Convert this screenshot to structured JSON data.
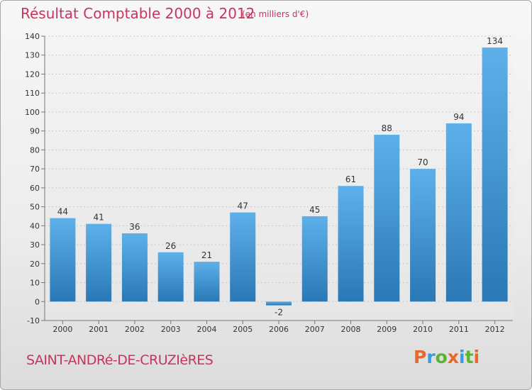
{
  "title": "Résultat Comptable 2000 à 2012",
  "subtitle": "(en milliers d'€)",
  "commune": "SAINT-ANDRé-DE-CRUZIèRES",
  "brand": {
    "text": "Proxiti",
    "colors": [
      "#e8692b",
      "#3a9be0",
      "#5cb531",
      "#e8692b",
      "#3a9be0",
      "#5cb531",
      "#e8692b"
    ]
  },
  "colors": {
    "bar_top": "#5eb0ea",
    "bar_bottom": "#2a78b5",
    "title": "#c8345e"
  },
  "chart_data": {
    "type": "bar",
    "categories": [
      "2000",
      "2001",
      "2002",
      "2003",
      "2004",
      "2005",
      "2006",
      "2007",
      "2008",
      "2009",
      "2010",
      "2011",
      "2012"
    ],
    "values": [
      44,
      41,
      36,
      26,
      21,
      47,
      -2,
      45,
      61,
      88,
      70,
      94,
      134
    ],
    "ylim": [
      -10,
      140
    ],
    "yticks": [
      -10,
      0,
      10,
      20,
      30,
      40,
      50,
      60,
      70,
      80,
      90,
      100,
      110,
      120,
      130,
      140
    ],
    "grid": true
  }
}
